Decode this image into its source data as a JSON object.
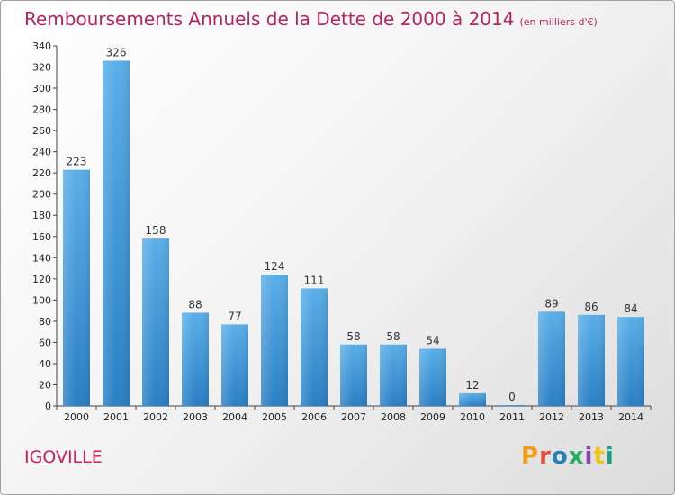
{
  "header": {
    "title": "Remboursements Annuels de la Dette de 2000 à 2014",
    "unit": "(en milliers d'€)"
  },
  "footer": {
    "commune": "IGOVILLE",
    "logo": "Proxiti",
    "logo_colors": [
      "#f39c12",
      "#e74c3c",
      "#2980b9",
      "#27ae60",
      "#8e44ad",
      "#f1c40f",
      "#16a085"
    ]
  },
  "chart_data": {
    "type": "bar",
    "title": "Remboursements Annuels de la Dette de 2000 à 2014",
    "xlabel": "",
    "ylabel": "",
    "categories": [
      "2000",
      "2001",
      "2002",
      "2003",
      "2004",
      "2005",
      "2006",
      "2007",
      "2008",
      "2009",
      "2010",
      "2011",
      "2012",
      "2013",
      "2014"
    ],
    "values": [
      223,
      326,
      158,
      88,
      77,
      124,
      111,
      58,
      58,
      54,
      12,
      0,
      89,
      86,
      84
    ],
    "ylim": [
      0,
      340
    ],
    "ytick_step": 20,
    "grid": false,
    "bar_color_top": "#5aaee8",
    "bar_color_bottom": "#2a7fc4"
  }
}
